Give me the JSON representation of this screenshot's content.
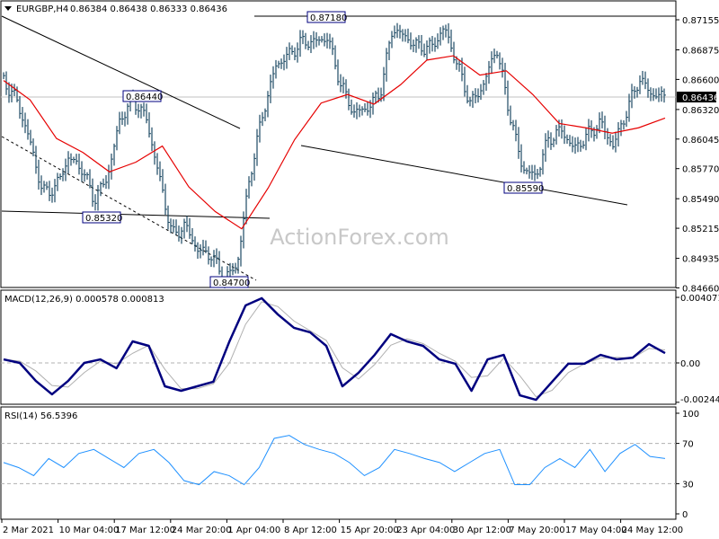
{
  "header": {
    "symbol": "EURGBP,H4",
    "ohlc": "0.86384 0.86438 0.86333 0.86436"
  },
  "watermark": "ActionForex.com",
  "colors": {
    "bars": "#1d4a63",
    "ma": "#e60000",
    "macd": "#00007f",
    "signal": "#b0b0b0",
    "rsi": "#1e90ff",
    "current_price_bg": "#000000"
  },
  "chart_data": [
    {
      "type": "ohlc-bar",
      "panel": "price",
      "symbol": "EURGBP",
      "timeframe": "H4",
      "yticks": [
        "0.87155",
        "0.86875",
        "0.86600",
        "0.86320",
        "0.86045",
        "0.85770",
        "0.85490",
        "0.85215",
        "0.84935",
        "0.84660"
      ],
      "ylim": [
        0.8466,
        0.87155
      ],
      "current_price": "0.86436",
      "xticks": [
        "2 Mar 2021",
        "10 Mar 04:00",
        "17 Mar 12:00",
        "24 Mar 20:00",
        "1 Apr 04:00",
        "8 Apr 12:00",
        "15 Apr 20:00",
        "23 Apr 04:00",
        "30 Apr 12:00",
        "7 May 20:00",
        "17 May 04:00",
        "24 May 12:00"
      ],
      "close": [
        0.8659,
        0.8641,
        0.8604,
        0.8555,
        0.8559,
        0.8587,
        0.8578,
        0.8548,
        0.8569,
        0.8624,
        0.8641,
        0.8624,
        0.8569,
        0.8515,
        0.8524,
        0.8501,
        0.8497,
        0.8474,
        0.8487,
        0.8571,
        0.8629,
        0.8673,
        0.8683,
        0.8695,
        0.8695,
        0.8699,
        0.8655,
        0.8629,
        0.8633,
        0.8646,
        0.8708,
        0.8699,
        0.869,
        0.869,
        0.8708,
        0.8673,
        0.8637,
        0.8655,
        0.869,
        0.8629,
        0.8578,
        0.8569,
        0.8604,
        0.8613,
        0.8595,
        0.8608,
        0.862,
        0.8598,
        0.8629,
        0.8661,
        0.8646,
        0.8644
      ],
      "moving_average": [
        0.8659,
        0.8641,
        0.8605,
        0.8592,
        0.8574,
        0.8583,
        0.8598,
        0.856,
        0.8537,
        0.8521,
        0.8559,
        0.8604,
        0.8638,
        0.8646,
        0.8637,
        0.8655,
        0.8678,
        0.8682,
        0.8664,
        0.8668,
        0.8646,
        0.8619,
        0.8615,
        0.861,
        0.8615,
        0.8624
      ],
      "annotations": [
        {
          "label": "0.87180",
          "price": 0.8718
        },
        {
          "label": "0.86440",
          "price": 0.8644
        },
        {
          "label": "0.85320",
          "price": 0.8532
        },
        {
          "label": "0.84700",
          "price": 0.847
        },
        {
          "label": "0.85590",
          "price": 0.8559
        }
      ]
    },
    {
      "type": "line",
      "panel": "macd",
      "title": "MACD(12,26,9) 0.000578 0.000813",
      "yticks": [
        "0.004071",
        "0.00",
        "-0.002445"
      ],
      "ylim": [
        -0.002445,
        0.004071
      ],
      "macd": [
        0.00022,
        0.0,
        -0.00112,
        -0.00195,
        -0.00112,
        0.0,
        0.00022,
        -0.00033,
        0.00134,
        0.00106,
        -0.00145,
        -0.00173,
        -0.00145,
        -0.00117,
        0.00134,
        0.00357,
        0.00402,
        0.00301,
        0.00218,
        0.0019,
        0.00106,
        -0.00145,
        -0.00061,
        0.0005,
        0.00179,
        0.00134,
        0.00106,
        0.00022,
        -5e-05,
        -0.00173,
        0.00022,
        0.0005,
        -0.00201,
        -0.00229,
        -0.00117,
        -5e-05,
        -5e-05,
        0.0005,
        0.00022,
        0.00033,
        0.00117,
        0.00061
      ],
      "signal": [
        0.00022,
        0.00011,
        -0.0005,
        -0.0014,
        -0.0015,
        -0.0006,
        0.00011,
        -5e-05,
        0.0006,
        0.0011,
        -0.0004,
        -0.0016,
        -0.0016,
        -0.0013,
        0.0,
        0.0024,
        0.0038,
        0.0035,
        0.0026,
        0.002,
        0.0014,
        -0.0003,
        -0.001,
        -0.0001,
        0.0011,
        0.0015,
        0.0012,
        0.0006,
        0.0001,
        -0.0009,
        -0.0008,
        0.0003,
        -0.0008,
        -0.0021,
        -0.0017,
        -0.0006,
        -5e-05,
        0.0003,
        0.00035,
        0.0003,
        0.0009,
        0.00081
      ]
    },
    {
      "type": "line",
      "panel": "rsi",
      "title": "RSI(14) 56.5396",
      "yticks": [
        "100",
        "70",
        "30",
        "0"
      ],
      "levels": [
        70,
        30
      ],
      "ylim": [
        0,
        100
      ],
      "values": [
        51,
        46,
        38,
        55,
        46,
        60,
        64,
        55,
        46,
        60,
        64,
        51,
        33,
        29,
        42,
        38,
        29,
        46,
        75,
        78,
        69,
        64,
        60,
        51,
        38,
        46,
        64,
        60,
        55,
        51,
        42,
        51,
        60,
        64,
        29,
        29,
        46,
        55,
        46,
        64,
        42,
        60,
        69,
        57,
        55
      ]
    }
  ]
}
